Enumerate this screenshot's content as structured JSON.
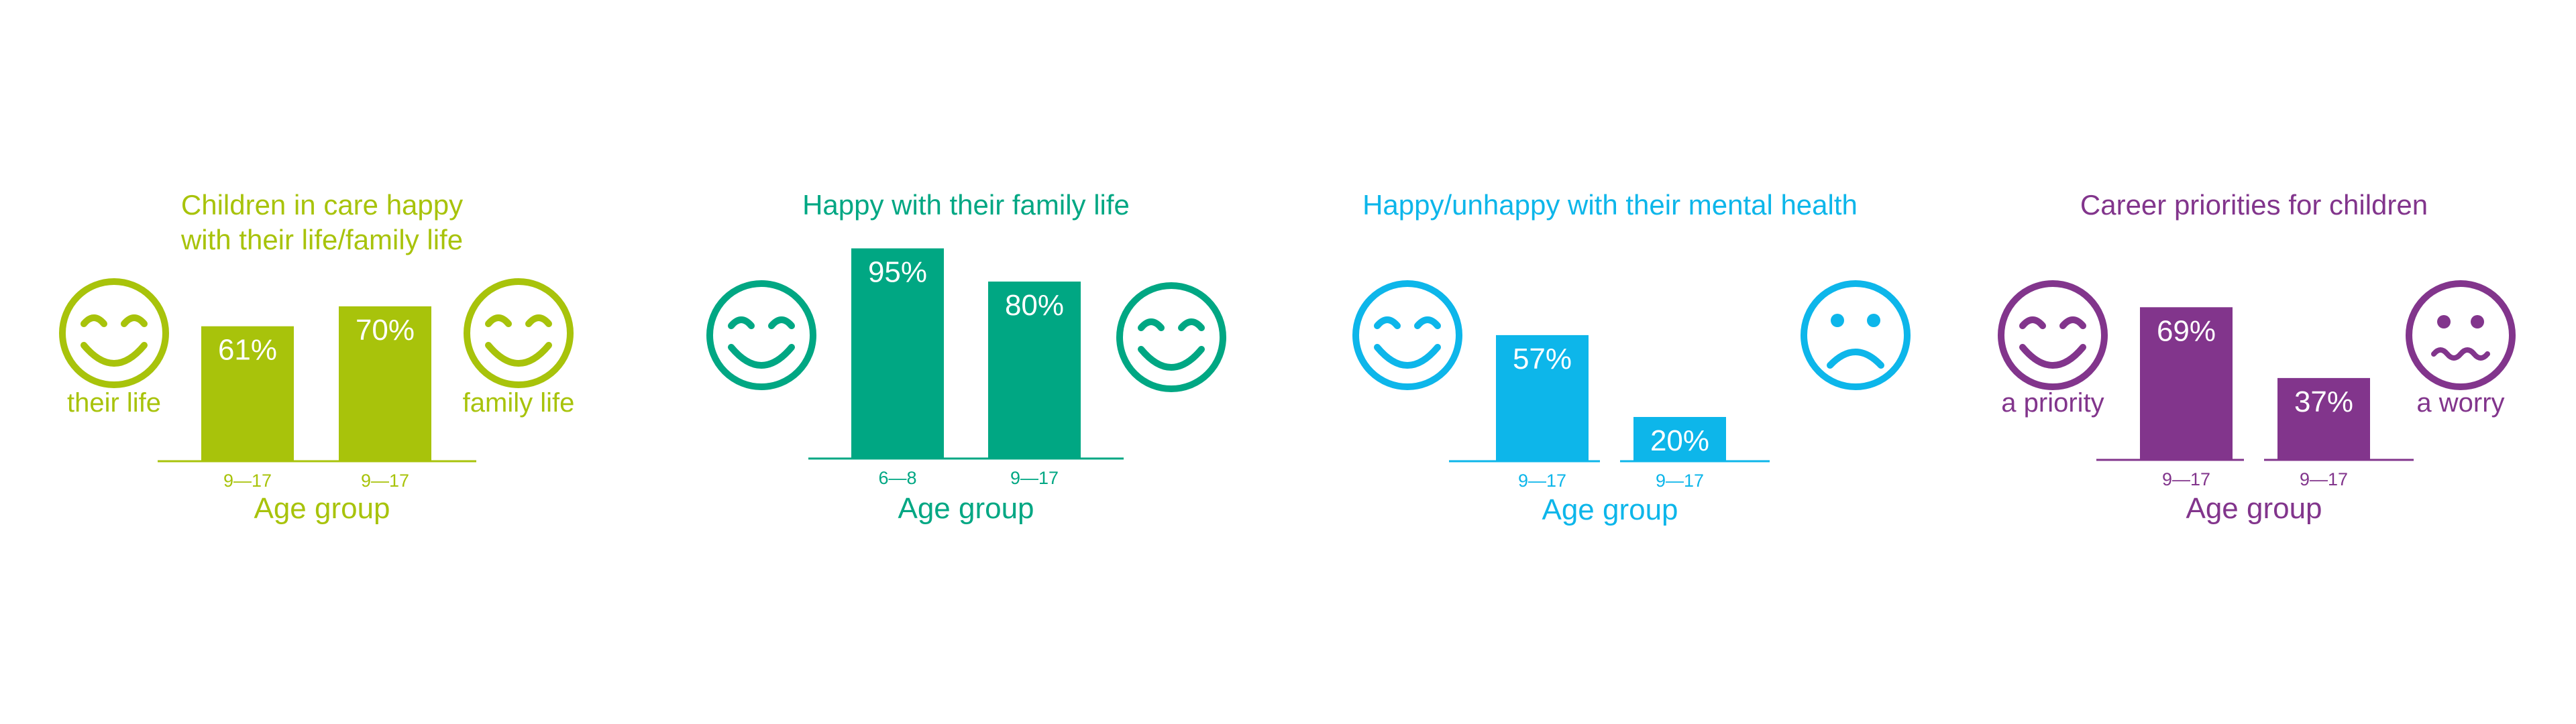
{
  "chart_data": [
    {
      "type": "bar",
      "title": "Children in care happy\nwith their life/family life",
      "color": "#a8c30b",
      "categories": [
        "9—17",
        "9—17"
      ],
      "values": [
        61,
        70
      ],
      "value_labels": [
        "61%",
        "70%"
      ],
      "xlabel": "Age group",
      "ylabel": "",
      "ylim": [
        0,
        100
      ],
      "grid": false,
      "left_icon": "smiling-face-icon",
      "left_icon_label": "their life",
      "right_icon": "smiling-face-icon",
      "right_icon_label": "family life"
    },
    {
      "type": "bar",
      "title": "Happy with their family life",
      "color": "#00a783",
      "categories": [
        "6—8",
        "9—17"
      ],
      "values": [
        95,
        80
      ],
      "value_labels": [
        "95%",
        "80%"
      ],
      "xlabel": "Age group",
      "ylabel": "",
      "ylim": [
        0,
        100
      ],
      "grid": false,
      "left_icon": "smiling-face-icon",
      "left_icon_label": "",
      "right_icon": "smiling-face-icon",
      "right_icon_label": ""
    },
    {
      "type": "bar",
      "title": "Happy/unhappy with their mental health",
      "color": "#0db6ea",
      "categories": [
        "9—17",
        "9—17"
      ],
      "values": [
        57,
        20
      ],
      "value_labels": [
        "57%",
        "20%"
      ],
      "xlabel": "Age group",
      "ylabel": "",
      "ylim": [
        0,
        100
      ],
      "grid": false,
      "left_icon": "smiling-face-icon",
      "left_icon_label": "",
      "right_icon": "sad-face-icon",
      "right_icon_label": ""
    },
    {
      "type": "bar",
      "title": "Career priorities for children",
      "color": "#82358c",
      "categories": [
        "9—17",
        "9—17"
      ],
      "values": [
        69,
        37
      ],
      "value_labels": [
        "69%",
        "37%"
      ],
      "xlabel": "Age group",
      "ylabel": "",
      "ylim": [
        0,
        100
      ],
      "grid": false,
      "left_icon": "smiling-face-icon",
      "left_icon_label": "a priority",
      "right_icon": "worried-face-icon",
      "right_icon_label": "a worry"
    }
  ]
}
